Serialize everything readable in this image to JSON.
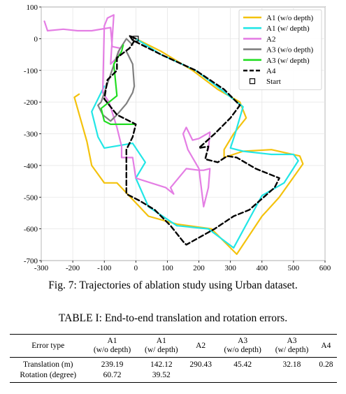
{
  "chart_data": {
    "type": "line",
    "title": "",
    "xlabel": "",
    "ylabel": "",
    "xlim": [
      -300,
      600
    ],
    "ylim": [
      -700,
      100
    ],
    "xticks": [
      -300,
      -200,
      -100,
      0,
      100,
      200,
      300,
      400,
      500,
      600
    ],
    "yticks": [
      -700,
      -600,
      -500,
      -400,
      -300,
      -200,
      -100,
      0,
      100
    ],
    "grid": true,
    "legend_position": "top-right",
    "series": [
      {
        "name": "A1 (w/o depth)",
        "color": "#f4c20d",
        "dash": "solid",
        "x": [
          0,
          80,
          180,
          260,
          330,
          350,
          310,
          280,
          280,
          340,
          430,
          520,
          530,
          455,
          400,
          320,
          240,
          130,
          40,
          -60,
          -100,
          -140,
          -155,
          -195,
          -180
        ],
        "y": [
          0,
          -40,
          -100,
          -160,
          -200,
          -250,
          -300,
          -350,
          -375,
          -355,
          -350,
          -370,
          -395,
          -500,
          -560,
          -680,
          -600,
          -585,
          -560,
          -455,
          -455,
          -400,
          -325,
          -185,
          -175
        ]
      },
      {
        "name": "A1 (w/ depth)",
        "color": "#22e6e6",
        "dash": "solid",
        "x": [
          0,
          80,
          190,
          270,
          340,
          315,
          300,
          340,
          430,
          500,
          515,
          470,
          400,
          310,
          230,
          130,
          40,
          0,
          30,
          -10,
          -100,
          -120,
          -140,
          -100
        ],
        "y": [
          0,
          -50,
          -100,
          -160,
          -215,
          -300,
          -345,
          -355,
          -365,
          -365,
          -385,
          -455,
          -495,
          -660,
          -600,
          -590,
          -530,
          -440,
          -390,
          -330,
          -345,
          -310,
          -230,
          -150
        ]
      },
      {
        "name": "A2",
        "color": "#e47ee4",
        "dash": "solid",
        "x": [
          -290,
          -280,
          -230,
          -185,
          -140,
          -80,
          -75,
          -50,
          -60,
          -80,
          -70,
          -90,
          -100,
          -105,
          -85,
          -60,
          -45,
          -45,
          -10,
          0,
          95,
          120,
          110,
          160,
          200,
          215,
          235,
          230,
          215,
          200,
          165,
          150,
          160,
          180,
          200,
          235,
          230
        ],
        "y": [
          55,
          25,
          30,
          25,
          25,
          35,
          -25,
          -30,
          -60,
          -80,
          75,
          65,
          40,
          -170,
          -200,
          -280,
          -340,
          -375,
          -375,
          -440,
          -470,
          -490,
          -470,
          -410,
          -415,
          -415,
          -410,
          -470,
          -530,
          -410,
          -350,
          -300,
          -280,
          -320,
          -315,
          -295,
          -350
        ]
      },
      {
        "name": "A3 (w/o depth)",
        "color": "#808080",
        "dash": "solid",
        "x": [
          -10,
          -30,
          -55,
          -110,
          -120,
          -105,
          -80,
          -60,
          -30,
          -10,
          -5,
          -10,
          -30
        ],
        "y": [
          -20,
          0,
          -40,
          -200,
          -210,
          -240,
          -260,
          -240,
          -205,
          -170,
          -150,
          -80,
          -40
        ]
      },
      {
        "name": "A3 (w/ depth)",
        "color": "#22dd22",
        "dash": "solid",
        "x": [
          -40,
          -45,
          -70,
          -60,
          -110,
          -100,
          -80,
          -30,
          0
        ],
        "y": [
          -20,
          -40,
          -80,
          -180,
          -220,
          -260,
          -270,
          -270,
          -270
        ]
      },
      {
        "name": "A4",
        "color": "#000000",
        "dash": "dashed",
        "x": [
          0,
          -20,
          -10,
          80,
          190,
          280,
          330,
          300,
          250,
          200,
          230,
          220,
          260,
          290,
          320,
          380,
          455,
          440,
          360,
          310,
          250,
          160,
          150,
          110,
          60,
          10,
          -30,
          -30,
          -10,
          0,
          0,
          -60,
          -100,
          -90,
          -60,
          -60,
          -20,
          0
        ],
        "y": [
          0,
          10,
          -5,
          -50,
          -100,
          -160,
          -210,
          -250,
          -300,
          -345,
          -340,
          -380,
          -390,
          -370,
          -375,
          -410,
          -440,
          -470,
          -540,
          -560,
          -600,
          -650,
          -640,
          -590,
          -540,
          -510,
          -490,
          -350,
          -310,
          -270,
          -270,
          -240,
          -190,
          -130,
          -100,
          -60,
          -30,
          0
        ]
      }
    ],
    "markers": [
      {
        "name": "Start",
        "x": 0,
        "y": 0,
        "shape": "square"
      }
    ]
  },
  "figure_caption": "Fig. 7: Trajectories of ablation study using Urban dataset.",
  "table_caption": "TABLE I: End-to-end translation and rotation errors.",
  "table": {
    "headers": [
      [
        "Error type"
      ],
      [
        "A1",
        "(w/o depth)"
      ],
      [
        "A1",
        "(w/ depth)"
      ],
      [
        "A2"
      ],
      [
        "A3",
        "(w/o depth)"
      ],
      [
        "A3",
        "(w/ depth)"
      ],
      [
        "A4"
      ]
    ],
    "rows": [
      {
        "label": "Translation (m)",
        "values": [
          "239.19",
          "142.12",
          "290.43",
          "45.42",
          "32.18",
          "0.28"
        ]
      },
      {
        "label": "Rotation (degree)",
        "values": [
          "60.72",
          "39.52",
          "",
          "",
          "",
          ""
        ]
      }
    ]
  }
}
